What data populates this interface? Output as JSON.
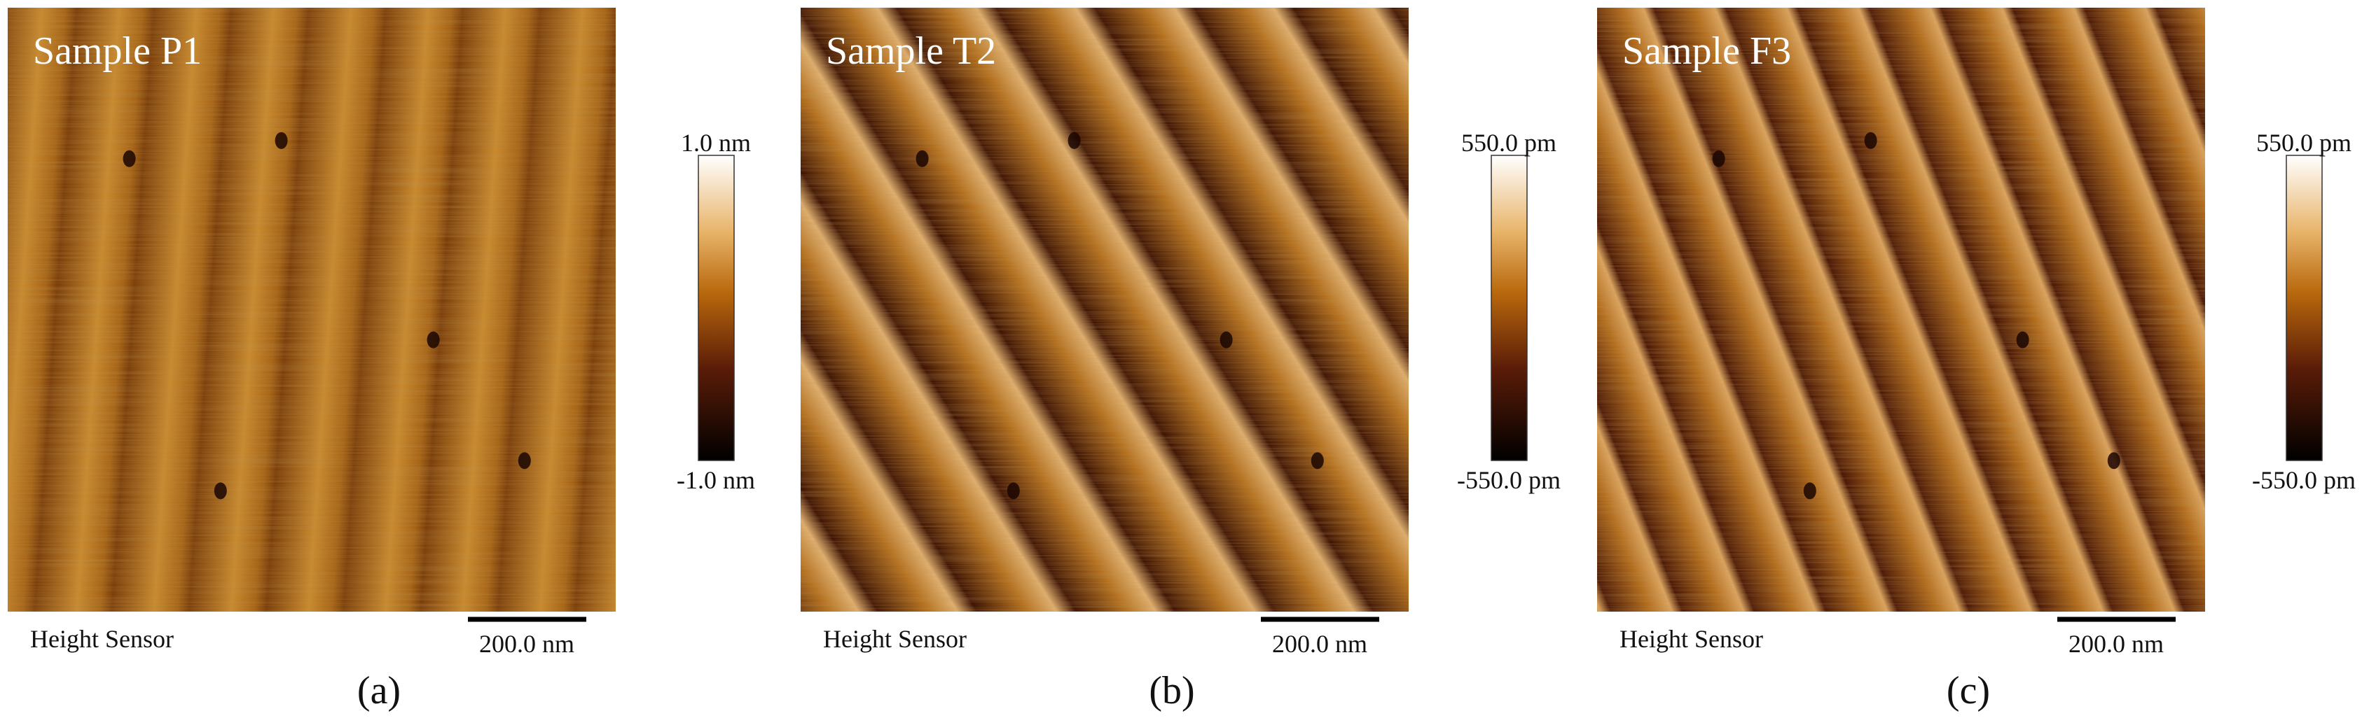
{
  "panels": [
    {
      "label": "Sample P1",
      "footer": "Height Sensor",
      "scale_bar": "200.0 nm",
      "colorbar": {
        "max": "1.0 nm",
        "min": "-1.0 nm"
      },
      "caption": "(a)"
    },
    {
      "label": "Sample T2",
      "footer": "Height Sensor",
      "scale_bar": "200.0 nm",
      "colorbar": {
        "max": "550.0 pm",
        "min": "-550.0 pm"
      },
      "caption": "(b)"
    },
    {
      "label": "Sample F3",
      "footer": "Height Sensor",
      "scale_bar": "200.0 nm",
      "colorbar": {
        "max": "550.0 pm",
        "min": "-550.0 pm"
      },
      "caption": "(c)"
    }
  ]
}
